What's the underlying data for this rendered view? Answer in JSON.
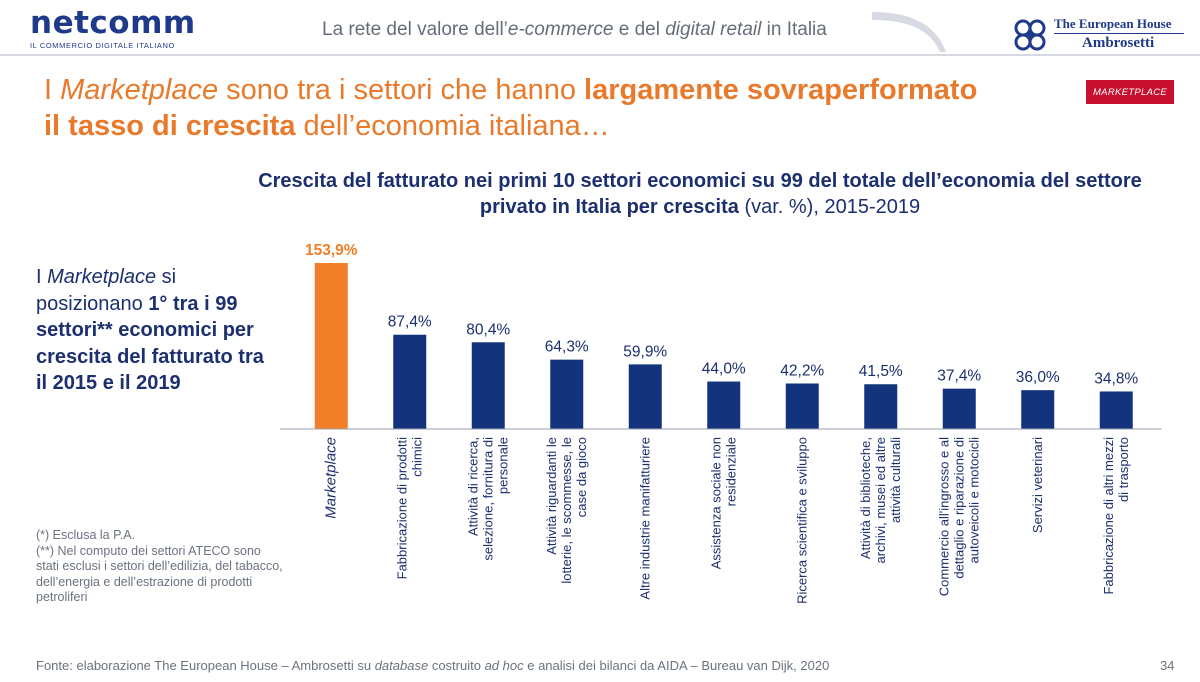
{
  "header": {
    "logo_main": "netcomm",
    "logo_sub": "IL COMMERCIO DIGITALE ITALIANO",
    "tagline_parts": [
      "La rete del valore dell’",
      "e-commerce",
      " e del ",
      "digital retail",
      " in Italia"
    ],
    "partner_line1": "The European House",
    "partner_line2": "Ambrosetti"
  },
  "title": {
    "part1": "I ",
    "part2": "Marketplace",
    "part3": " sono tra i settori che hanno ",
    "part4": "largamente sovraperformato",
    "part5": "il tasso di crescita",
    "part6": " dell’economia italiana…"
  },
  "badge": "MARKETPLACE",
  "callout": {
    "p1": "I ",
    "p2": "Marketplace",
    "p3": " si posizionano ",
    "p4": "1° tra i 99 settori** economici per crescita del fatturato tra il 2015 e il 2019"
  },
  "notes": {
    "n1": "(*) Esclusa la P.A.",
    "n2": "(**) Nel computo dei settori ATECO sono stati esclusi i settori dell’edilizia, del tabacco, dell’energia e dell’estrazione di prodotti petroliferi"
  },
  "footer": {
    "p1": "Fonte: elaborazione The European House – Ambrosetti su ",
    "p2": "database",
    "p3": " costruito ",
    "p4": "ad hoc",
    "p5": " e analisi dei bilanci da AIDA – Bureau van Dijk, 2020"
  },
  "page_number": "34",
  "colors": {
    "highlight": "#f07f28",
    "bar": "#13347c",
    "title_orange": "#ea7a2b",
    "navy_text": "#1c2f6e",
    "badge_red": "#c8102e"
  },
  "chart_data": {
    "type": "bar",
    "title_bold": "Crescita del fatturato nei primi 10 settori economici su 99 del totale dell’economia del settore privato in Italia per crescita",
    "title_normal": " (var. %), 2015-2019",
    "categories": [
      "Marketplace",
      "Fabbricazione di prodotti chimici",
      "Attività di ricerca, selezione, fornitura di personale",
      "Attività riguardanti le lotterie, le scommesse, le case da gioco",
      "Altre industrie manifatturiere",
      "Assistenza sociale non residenziale",
      "Ricerca scientifica e sviluppo",
      "Attività di biblioteche, archivi, musei ed altre attività culturali",
      "Commercio all'ingrosso e al dettaglio e riparazione di autoveicoli e motocicli",
      "Servizi veterinari",
      "Fabbricazione di altri mezzi di trasporto"
    ],
    "values": [
      153.9,
      87.4,
      80.4,
      64.3,
      59.9,
      44.0,
      42.2,
      41.5,
      37.4,
      36.0,
      34.8
    ],
    "value_labels": [
      "153,9%",
      "87,4%",
      "80,4%",
      "64,3%",
      "59,9%",
      "44,0%",
      "42,2%",
      "41,5%",
      "37,4%",
      "36,0%",
      "34,8%"
    ],
    "highlight_index": 0,
    "ylim": [
      0,
      160
    ],
    "grid": false
  }
}
